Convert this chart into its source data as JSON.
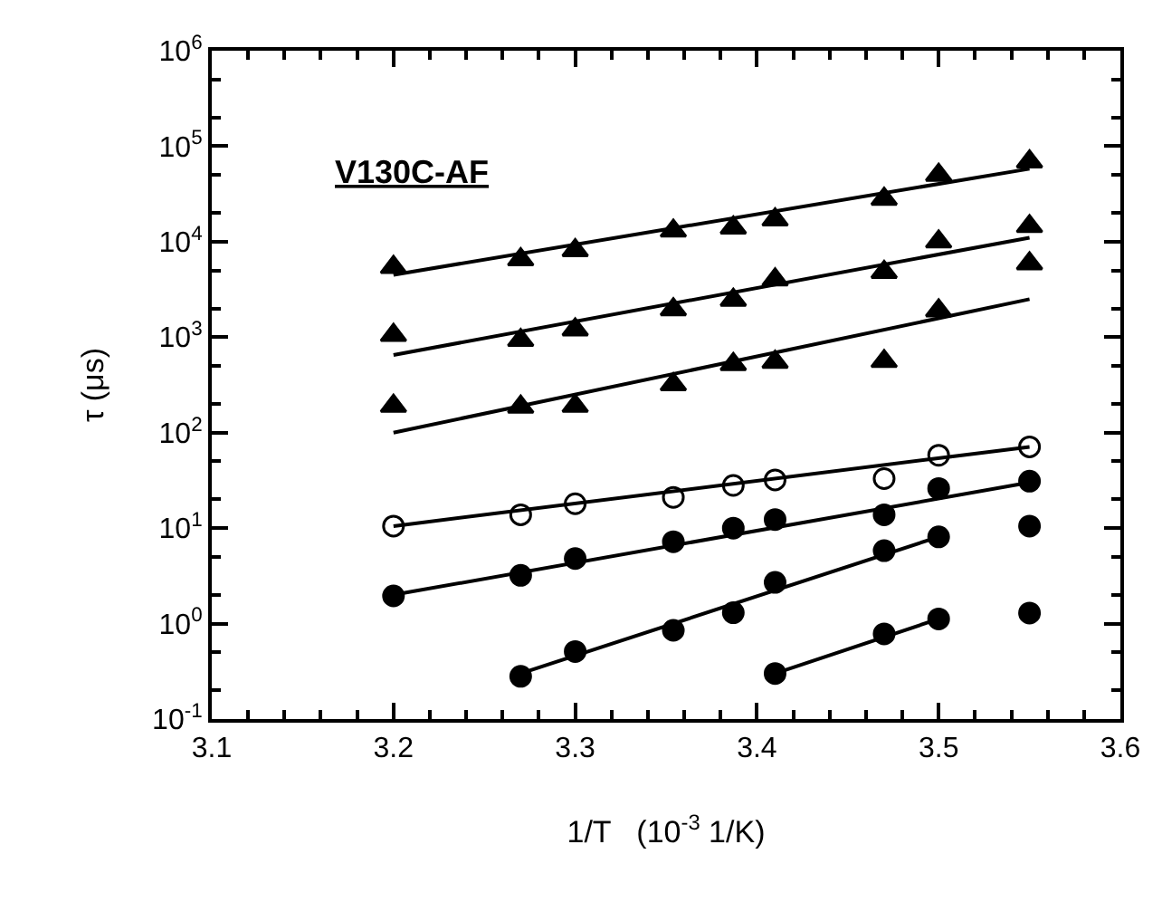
{
  "chart_data": {
    "type": "scatter",
    "xlabel": "1/T   (10$^{-3}$ 1/K)",
    "ylabel": "τ (μs)",
    "annotations": [
      "V130C-AF"
    ],
    "x": [
      3.2,
      3.27,
      3.3,
      3.354,
      3.387,
      3.41,
      3.47,
      3.5,
      3.55
    ],
    "series": [
      {
        "color": "#000000",
        "marker": "triangle",
        "values": [
          5400,
          6500,
          8100,
          13000,
          14000,
          17000,
          28000,
          50000,
          69000
        ]
      },
      {
        "color": "#000000",
        "marker": "triangle",
        "values": [
          1050,
          930,
          1200,
          1950,
          2450,
          4000,
          4800,
          10000,
          14500
        ]
      },
      {
        "color": "#000000",
        "marker": "triangle",
        "values": [
          190,
          186,
          190,
          320,
          520,
          550,
          560,
          1900,
          5900
        ]
      },
      {
        "color": "#000000",
        "marker": "circle-open",
        "values": [
          10.5,
          13.8,
          18,
          21,
          28,
          32,
          33,
          58,
          71
        ]
      },
      {
        "color": "#000000",
        "marker": "circle",
        "values": [
          1.95,
          3.2,
          4.8,
          7.2,
          10,
          12.3,
          13.8,
          26,
          31
        ]
      },
      {
        "color": "#000000",
        "marker": "circle",
        "x": [
          3.27,
          3.3,
          3.354,
          3.387,
          3.41,
          3.47,
          3.5,
          3.55
        ],
        "values": [
          0.28,
          0.51,
          0.85,
          1.3,
          2.7,
          5.8,
          8.1,
          10.5
        ]
      },
      {
        "color": "#000000",
        "marker": "circle",
        "x": [
          3.41,
          3.47,
          3.5,
          3.55
        ],
        "values": [
          0.3,
          0.78,
          1.12,
          1.29
        ]
      },
      {
        "type": "line",
        "color": "#000000",
        "marker": "none",
        "x": [
          3.2,
          3.55
        ],
        "values": [
          4500,
          58000
        ]
      },
      {
        "type": "line",
        "color": "#000000",
        "marker": "none",
        "x": [
          3.2,
          3.55
        ],
        "values": [
          650,
          11000
        ]
      },
      {
        "type": "line",
        "color": "#000000",
        "marker": "none",
        "x": [
          3.2,
          3.55
        ],
        "values": [
          100,
          2500
        ]
      },
      {
        "type": "line",
        "color": "#000000",
        "marker": "none",
        "x": [
          3.2,
          3.55
        ],
        "values": [
          10.5,
          71
        ]
      },
      {
        "type": "line",
        "color": "#000000",
        "marker": "none",
        "x": [
          3.2,
          3.55
        ],
        "values": [
          2.0,
          30
        ]
      },
      {
        "type": "line",
        "color": "#000000",
        "marker": "none",
        "x": [
          3.27,
          3.5
        ],
        "values": [
          0.3,
          8.1
        ]
      },
      {
        "type": "line",
        "color": "#000000",
        "marker": "none",
        "x": [
          3.41,
          3.5
        ],
        "values": [
          0.3,
          1.12
        ]
      }
    ],
    "log": "y",
    "xlim": [
      3.1,
      3.6
    ],
    "xticks": [
      3.1,
      3.2,
      3.3,
      3.4,
      3.5,
      3.6
    ],
    "ylim": [
      0.1,
      1000000
    ],
    "yticks": [
      {
        "value": 0.1,
        "label": "10$^{-1}$"
      },
      {
        "value": 1,
        "label": "10$^{0}$"
      },
      {
        "value": 10,
        "label": "10$^{1}$"
      },
      {
        "value": 100,
        "label": "10$^{2}$"
      },
      {
        "value": 1000,
        "label": "10$^{3}$"
      },
      {
        "value": 10000,
        "label": "10$^{4}$"
      },
      {
        "value": 100000,
        "label": "10$^{5}$"
      },
      {
        "value": 1000000,
        "label": "10$^{6}$"
      }
    ]
  }
}
